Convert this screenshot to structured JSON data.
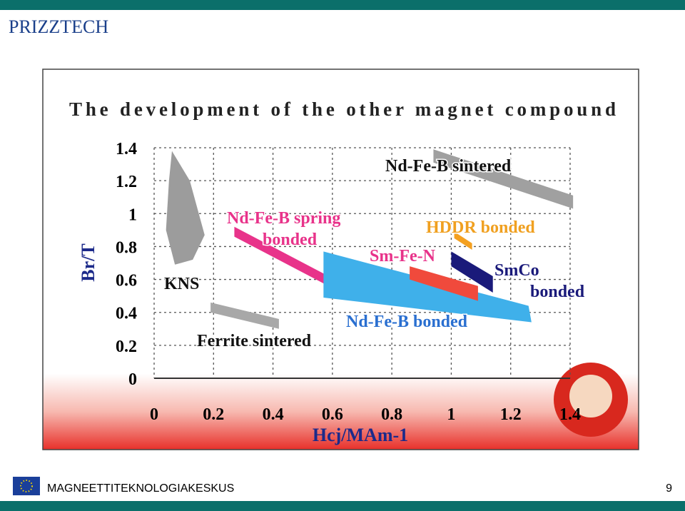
{
  "header": {
    "title": "PRIZZTECH"
  },
  "footer": {
    "text": "MAGNEETTITEKNOLOGIAKESKUS",
    "page": "9"
  },
  "chart_data": {
    "type": "region",
    "title": "The development of the other magnet compound",
    "x_label": "Hcj/MAm-1",
    "y_label": "Br/T",
    "xlim": [
      0,
      1.4
    ],
    "ylim": [
      0,
      1.4
    ],
    "xticks": [
      0,
      0.2,
      0.4,
      0.6,
      0.8,
      1,
      1.2,
      1.4
    ],
    "yticks": [
      0,
      0.2,
      0.4,
      0.6,
      0.8,
      1,
      1.2,
      1.4
    ],
    "grid": true,
    "series": [
      {
        "name": "KNS",
        "color": "#9c9c9c",
        "x": [
          0.06,
          0.12,
          0.17,
          0.13,
          0.07,
          0.04,
          0.05
        ],
        "y": [
          1.38,
          1.2,
          0.87,
          0.72,
          0.69,
          0.9,
          1.2
        ]
      },
      {
        "name": "Ferrite sintered",
        "color": "#a8a8a8",
        "x": [
          0.19,
          0.42,
          0.42,
          0.19
        ],
        "y": [
          0.46,
          0.36,
          0.3,
          0.4
        ]
      },
      {
        "name": "Nd-Fe-B spring bonded",
        "color": "#e8338a",
        "x": [
          0.27,
          0.64,
          0.64,
          0.27
        ],
        "y": [
          0.92,
          0.57,
          0.51,
          0.86
        ]
      },
      {
        "name": "Nd-Fe-B bonded",
        "color": "#3fb0ea",
        "x": [
          0.57,
          1.26,
          1.27,
          0.57
        ],
        "y": [
          0.77,
          0.44,
          0.34,
          0.49
        ]
      },
      {
        "name": "Sm-Fe-N",
        "color": "#f04a3c",
        "x": [
          0.86,
          1.09,
          1.09,
          0.86
        ],
        "y": [
          0.68,
          0.56,
          0.47,
          0.6
        ]
      },
      {
        "name": "HDDR bonded",
        "color": "#f4a020",
        "x": [
          1.01,
          1.07,
          1.07,
          1.01
        ],
        "y": [
          0.89,
          0.82,
          0.78,
          0.85
        ]
      },
      {
        "name": "SmCo bonded",
        "color": "#1a1a7a",
        "x": [
          1.0,
          1.14,
          1.14,
          1.0
        ],
        "y": [
          0.77,
          0.62,
          0.52,
          0.68
        ]
      },
      {
        "name": "Nd-Fe-B sintered",
        "color": "#a0a0a0",
        "x": [
          0.94,
          1.41,
          1.41,
          0.94
        ],
        "y": [
          1.39,
          1.11,
          1.03,
          1.31
        ]
      }
    ]
  }
}
